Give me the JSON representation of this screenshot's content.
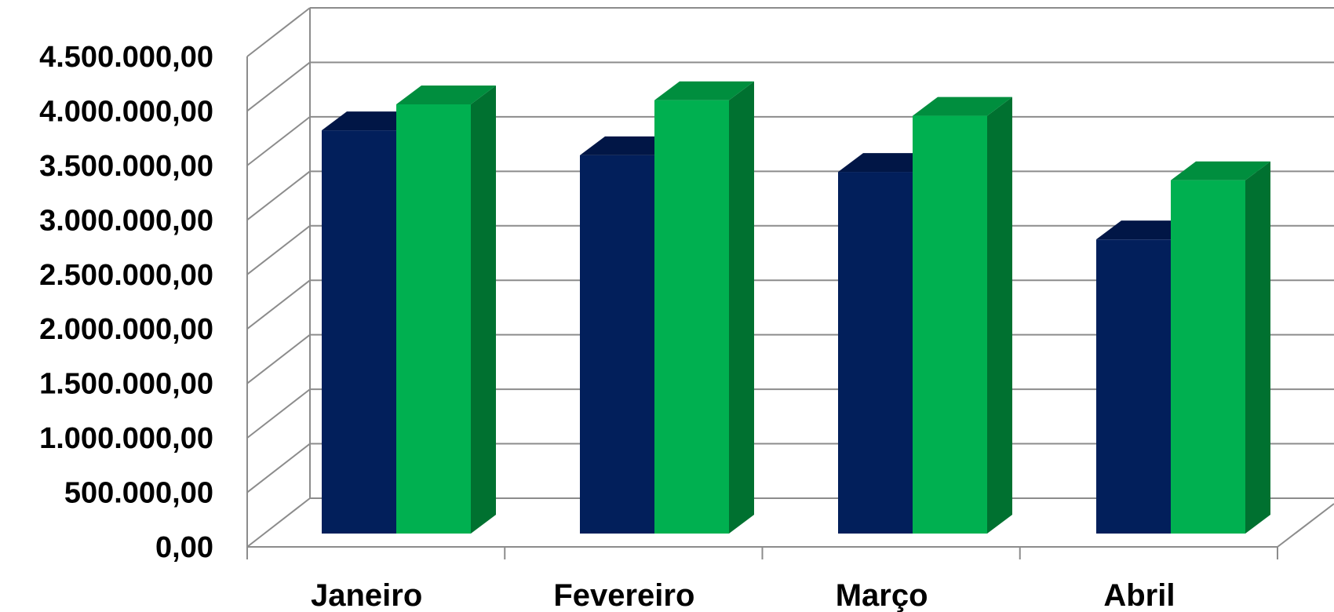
{
  "chart_data": {
    "type": "bar",
    "categories": [
      "Janeiro",
      "Fevereiro",
      "Março",
      "Abril"
    ],
    "series": [
      {
        "values": [
          3880000,
          3640000,
          3480000,
          2830000
        ]
      },
      {
        "values": [
          4130000,
          4170000,
          4020000,
          3400000
        ]
      }
    ],
    "ylim": [
      0,
      4500000
    ],
    "yticks": [
      0,
      500000,
      1000000,
      1500000,
      2000000,
      2500000,
      3000000,
      3500000,
      4000000,
      4500000
    ],
    "ytick_labels": [
      "0,00",
      "500.000,00",
      "1.000.000,00",
      "1.500.000,00",
      "2.000.000,00",
      "2.500.000,00",
      "3.000.000,00",
      "3.500.000,00",
      "4.000.000,00",
      "4.500.000,00"
    ],
    "grid": true,
    "legend": "none",
    "projection": "3d-clustered-column",
    "colors": {
      "series_1": {
        "front": "#021f5b",
        "top": "#011646",
        "side": "#011033"
      },
      "series_2": {
        "front": "#00b050",
        "top": "#008e3e",
        "side": "#007130"
      },
      "grid": "#8c8c8c",
      "text": "#000000"
    }
  }
}
